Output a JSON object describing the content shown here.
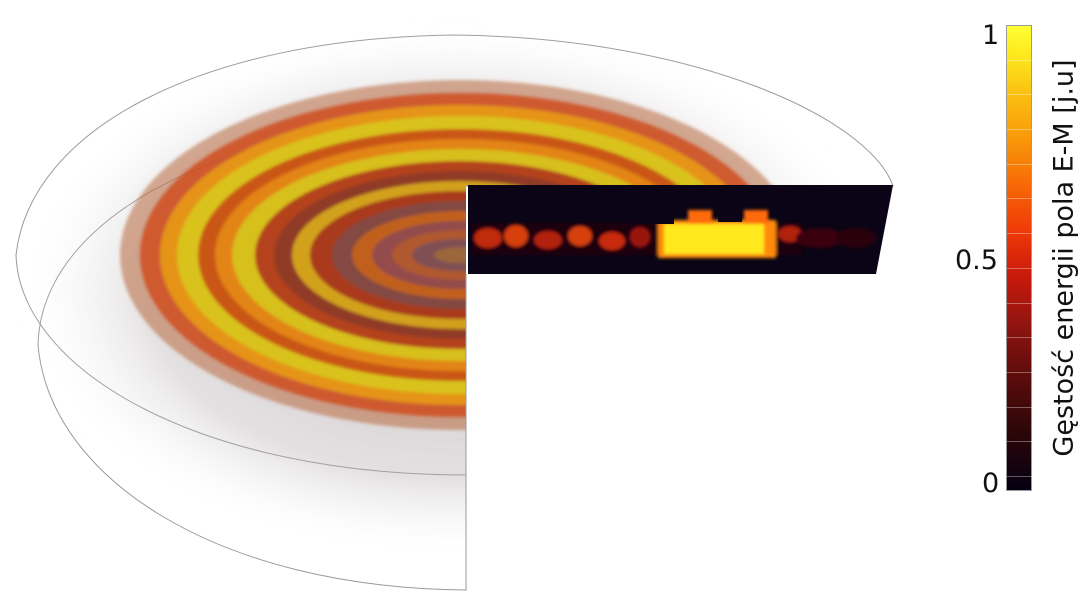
{
  "colorbar": {
    "title": "Gęstość energii pola E-M [j.u]",
    "ticks": [
      "1",
      "0.5",
      "0"
    ],
    "colormap": [
      "#050012",
      "#5a0c0c",
      "#c81a0c",
      "#f76a06",
      "#fbc312",
      "#ffff33"
    ]
  },
  "visualization": {
    "description_type": "3d-volume-render-cutaway",
    "colors": {
      "ring_yellow": "#d6c21a",
      "ring_orange": "#e07a16",
      "ring_red": "#a8361a",
      "slice_bg": "#0a0416",
      "slice_hot": "#ffe81a"
    }
  }
}
